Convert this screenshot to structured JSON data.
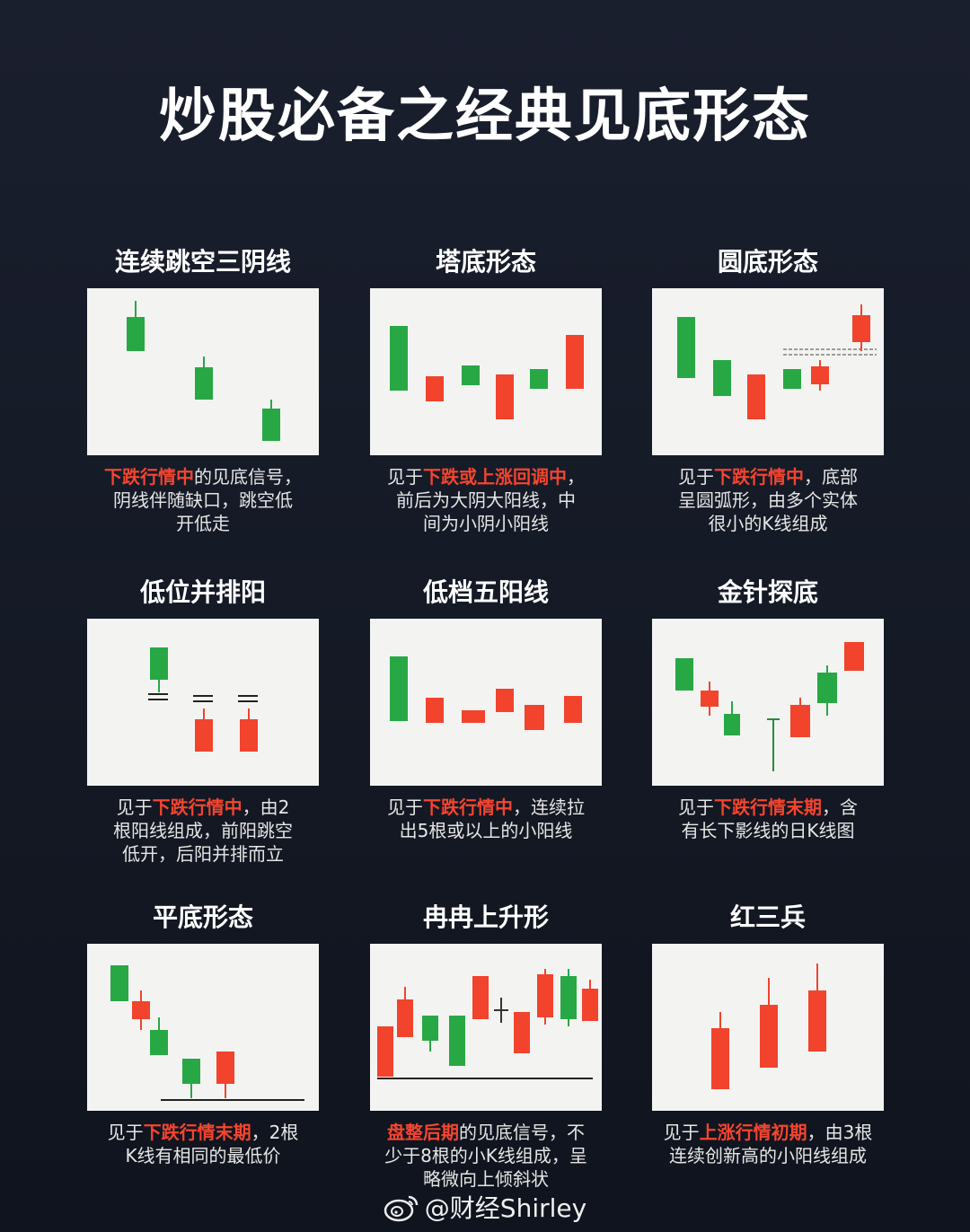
{
  "title": "炒股必备之经典见底形态",
  "colors": {
    "up": "#f2432d",
    "down": "#27a845",
    "wick": "#555555",
    "highlight": "#f4452f"
  },
  "watermark": {
    "icon": "weibo-icon",
    "text": "@财经Shirley"
  },
  "patterns": [
    {
      "name": "连续跳空三阴线",
      "desc": [
        {
          "text": "下跌行情中",
          "hl": true
        },
        {
          "text": "的见底信号，\n阴线伴随缺口，跳空低\n开低走",
          "hl": false
        }
      ]
    },
    {
      "name": "塔底形态",
      "desc": [
        {
          "text": "见于",
          "hl": false
        },
        {
          "text": "下跌或上涨回调中",
          "hl": true
        },
        {
          "text": "，\n前后为大阴大阳线，中\n间为小阴小阳线",
          "hl": false
        }
      ]
    },
    {
      "name": "圆底形态",
      "desc": [
        {
          "text": "见于",
          "hl": false
        },
        {
          "text": "下跌行情中",
          "hl": true
        },
        {
          "text": "，底部\n呈圆弧形，由多个实体\n很小的K线组成",
          "hl": false
        }
      ]
    },
    {
      "name": "低位并排阳",
      "desc": [
        {
          "text": "见于",
          "hl": false
        },
        {
          "text": "下跌行情中",
          "hl": true
        },
        {
          "text": "，由2\n根阳线组成，前阳跳空\n低开，后阳并排而立",
          "hl": false
        }
      ]
    },
    {
      "name": "低档五阳线",
      "desc": [
        {
          "text": "见于",
          "hl": false
        },
        {
          "text": "下跌行情中",
          "hl": true
        },
        {
          "text": "，连续拉\n出5根或以上的小阳线",
          "hl": false
        }
      ]
    },
    {
      "name": "金针探底",
      "desc": [
        {
          "text": "见于",
          "hl": false
        },
        {
          "text": "下跌行情末期",
          "hl": true
        },
        {
          "text": "，含\n有长下影线的日K线图",
          "hl": false
        }
      ]
    },
    {
      "name": "平底形态",
      "desc": [
        {
          "text": "见于",
          "hl": false
        },
        {
          "text": "下跌行情末期",
          "hl": true
        },
        {
          "text": "，2根\nK线有相同的最低价",
          "hl": false
        }
      ]
    },
    {
      "name": "冉冉上升形",
      "desc": [
        {
          "text": "盘整后期",
          "hl": true
        },
        {
          "text": "的见底信号，不\n少于8根的小K线组成，呈\n略微向上倾斜状",
          "hl": false
        }
      ]
    },
    {
      "name": "红三兵",
      "desc": [
        {
          "text": "见于",
          "hl": false
        },
        {
          "text": "上涨行情初期",
          "hl": true
        },
        {
          "text": "，由3根\n连续创新高的小阳线组成",
          "hl": false
        }
      ]
    }
  ]
}
